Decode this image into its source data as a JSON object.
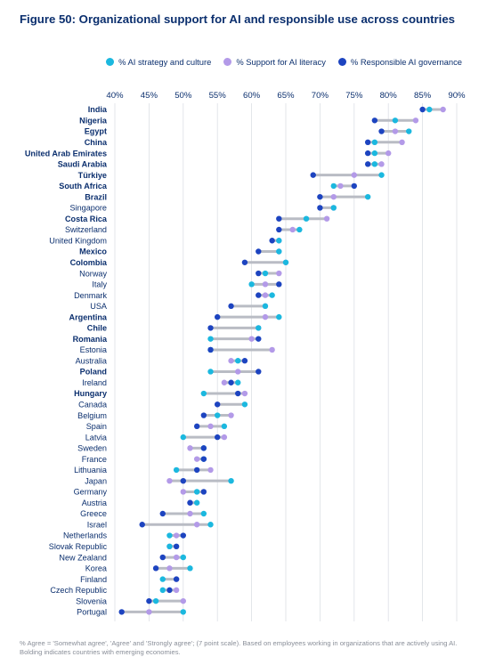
{
  "title": "Figure 50: Organizational support for AI and responsible use across countries",
  "footnote": "% Agree = 'Somewhat agree', 'Agree' and 'Strongly agree'; (7 point scale). Based on employees working in organizations that are actively using AI. Bolding indicates countries with emerging economies.",
  "colors": {
    "strategy": "#1bb8df",
    "literacy": "#b39ae8",
    "governance": "#1d44c0",
    "range_bar": "#b9bcc4",
    "grid": "#dcdfe5",
    "label": "#0b2f6e"
  },
  "chart_data": {
    "type": "dumbbell",
    "xlim": [
      40,
      90
    ],
    "x_ticks": [
      "40%",
      "45%",
      "50%",
      "55%",
      "60%",
      "65%",
      "70%",
      "75%",
      "80%",
      "85%",
      "90%"
    ],
    "x_tick_values": [
      40,
      45,
      50,
      55,
      60,
      65,
      70,
      75,
      80,
      85,
      90
    ],
    "grid": true,
    "legend_position": "top-right",
    "series": [
      {
        "key": "strategy",
        "name": "% AI strategy and culture"
      },
      {
        "key": "literacy",
        "name": "% Support for AI literacy"
      },
      {
        "key": "governance",
        "name": "% Responsible AI governance"
      }
    ],
    "rows": [
      {
        "country": "India",
        "emerging": true,
        "strategy": 86,
        "literacy": 88,
        "governance": 85
      },
      {
        "country": "Nigeria",
        "emerging": true,
        "strategy": 81,
        "literacy": 84,
        "governance": 78
      },
      {
        "country": "Egypt",
        "emerging": true,
        "strategy": 83,
        "literacy": 81,
        "governance": 79
      },
      {
        "country": "China",
        "emerging": true,
        "strategy": 78,
        "literacy": 82,
        "governance": 77
      },
      {
        "country": "United Arab Emirates",
        "emerging": true,
        "strategy": 78,
        "literacy": 80,
        "governance": 77
      },
      {
        "country": "Saudi Arabia",
        "emerging": true,
        "strategy": 78,
        "literacy": 79,
        "governance": 77
      },
      {
        "country": "Türkiye",
        "emerging": true,
        "strategy": 79,
        "literacy": 75,
        "governance": 69
      },
      {
        "country": "South Africa",
        "emerging": true,
        "strategy": 72,
        "literacy": 73,
        "governance": 75
      },
      {
        "country": "Brazil",
        "emerging": true,
        "strategy": 77,
        "literacy": 72,
        "governance": 70
      },
      {
        "country": "Singapore",
        "emerging": false,
        "strategy": 72,
        "literacy": 72,
        "governance": 70
      },
      {
        "country": "Costa Rica",
        "emerging": true,
        "strategy": 68,
        "literacy": 71,
        "governance": 64
      },
      {
        "country": "Switzerland",
        "emerging": false,
        "strategy": 67,
        "literacy": 66,
        "governance": 64
      },
      {
        "country": "United Kingdom",
        "emerging": false,
        "strategy": 64,
        "literacy": 64,
        "governance": 63
      },
      {
        "country": "Mexico",
        "emerging": true,
        "strategy": 64,
        "literacy": 64,
        "governance": 61
      },
      {
        "country": "Colombia",
        "emerging": true,
        "strategy": 65,
        "literacy": 65,
        "governance": 59
      },
      {
        "country": "Norway",
        "emerging": false,
        "strategy": 62,
        "literacy": 64,
        "governance": 61
      },
      {
        "country": "Italy",
        "emerging": false,
        "strategy": 60,
        "literacy": 62,
        "governance": 64
      },
      {
        "country": "Denmark",
        "emerging": false,
        "strategy": 63,
        "literacy": 62,
        "governance": 61
      },
      {
        "country": "USA",
        "emerging": false,
        "strategy": 62,
        "literacy": 62,
        "governance": 57
      },
      {
        "country": "Argentina",
        "emerging": true,
        "strategy": 64,
        "literacy": 62,
        "governance": 55
      },
      {
        "country": "Chile",
        "emerging": true,
        "strategy": 61,
        "literacy": 61,
        "governance": 54
      },
      {
        "country": "Romania",
        "emerging": true,
        "strategy": 54,
        "literacy": 60,
        "governance": 61
      },
      {
        "country": "Estonia",
        "emerging": false,
        "strategy": 54,
        "literacy": 63,
        "governance": 54
      },
      {
        "country": "Australia",
        "emerging": false,
        "strategy": 58,
        "literacy": 57,
        "governance": 59
      },
      {
        "country": "Poland",
        "emerging": true,
        "strategy": 54,
        "literacy": 58,
        "governance": 61
      },
      {
        "country": "Ireland",
        "emerging": false,
        "strategy": 58,
        "literacy": 56,
        "governance": 57
      },
      {
        "country": "Hungary",
        "emerging": true,
        "strategy": 53,
        "literacy": 59,
        "governance": 58
      },
      {
        "country": "Canada",
        "emerging": false,
        "strategy": 59,
        "literacy": 55,
        "governance": 55
      },
      {
        "country": "Belgium",
        "emerging": false,
        "strategy": 55,
        "literacy": 57,
        "governance": 53
      },
      {
        "country": "Spain",
        "emerging": false,
        "strategy": 56,
        "literacy": 54,
        "governance": 52
      },
      {
        "country": "Latvia",
        "emerging": false,
        "strategy": 50,
        "literacy": 56,
        "governance": 55
      },
      {
        "country": "Sweden",
        "emerging": false,
        "strategy": 53,
        "literacy": 51,
        "governance": 53
      },
      {
        "country": "France",
        "emerging": false,
        "strategy": 53,
        "literacy": 52,
        "governance": 53
      },
      {
        "country": "Lithuania",
        "emerging": false,
        "strategy": 49,
        "literacy": 54,
        "governance": 52
      },
      {
        "country": "Japan",
        "emerging": false,
        "strategy": 57,
        "literacy": 48,
        "governance": 50
      },
      {
        "country": "Germany",
        "emerging": false,
        "strategy": 52,
        "literacy": 50,
        "governance": 53
      },
      {
        "country": "Austria",
        "emerging": false,
        "strategy": 52,
        "literacy": 51,
        "governance": 51
      },
      {
        "country": "Greece",
        "emerging": false,
        "strategy": 53,
        "literacy": 51,
        "governance": 47
      },
      {
        "country": "Israel",
        "emerging": false,
        "strategy": 54,
        "literacy": 52,
        "governance": 44
      },
      {
        "country": "Netherlands",
        "emerging": false,
        "strategy": 48,
        "literacy": 49,
        "governance": 50
      },
      {
        "country": "Slovak Republic",
        "emerging": false,
        "strategy": 48,
        "literacy": 48,
        "governance": 49
      },
      {
        "country": "New Zealand",
        "emerging": false,
        "strategy": 50,
        "literacy": 49,
        "governance": 47
      },
      {
        "country": "Korea",
        "emerging": false,
        "strategy": 51,
        "literacy": 48,
        "governance": 46
      },
      {
        "country": "Finland",
        "emerging": false,
        "strategy": 47,
        "literacy": 49,
        "governance": 49
      },
      {
        "country": "Czech Republic",
        "emerging": false,
        "strategy": 47,
        "literacy": 49,
        "governance": 48
      },
      {
        "country": "Slovenia",
        "emerging": false,
        "strategy": 46,
        "literacy": 50,
        "governance": 45
      },
      {
        "country": "Portugal",
        "emerging": false,
        "strategy": 50,
        "literacy": 45,
        "governance": 41
      }
    ]
  }
}
